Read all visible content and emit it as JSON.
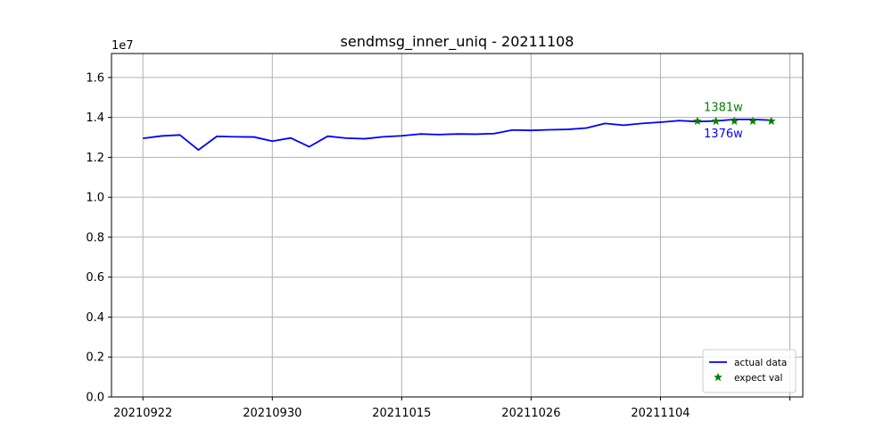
{
  "chart_data": {
    "type": "line",
    "title": "sendmsg_inner_uniq - 20211108",
    "y_offset_text": "1e7",
    "ylim": [
      0,
      1.72
    ],
    "yticks": [
      0.0,
      0.2,
      0.4,
      0.6,
      0.8,
      1.0,
      1.2,
      1.4,
      1.6
    ],
    "ytick_labels": [
      "0.0",
      "0.2",
      "0.4",
      "0.6",
      "0.8",
      "1.0",
      "1.2",
      "1.4",
      "1.6"
    ],
    "xlim": [
      -1.7,
      35.7
    ],
    "xticks": [
      0,
      7,
      14,
      21,
      28,
      35
    ],
    "xtick_labels": [
      "20210922",
      "20210930",
      "20211015",
      "20211026",
      "20211104",
      ""
    ],
    "grid": true,
    "series": [
      {
        "name": "actual data",
        "color": "#0000ff",
        "style": "line",
        "x": [
          0,
          1,
          2,
          3,
          4,
          5,
          6,
          7,
          8,
          9,
          10,
          11,
          12,
          13,
          14,
          15,
          16,
          17,
          18,
          19,
          20,
          21,
          22,
          23,
          24,
          25,
          26,
          27,
          28,
          29,
          30,
          31,
          32,
          33,
          34
        ],
        "values": [
          1.295,
          1.307,
          1.312,
          1.237,
          1.305,
          1.303,
          1.302,
          1.281,
          1.297,
          1.253,
          1.306,
          1.296,
          1.293,
          1.303,
          1.308,
          1.317,
          1.314,
          1.317,
          1.316,
          1.319,
          1.337,
          1.335,
          1.338,
          1.34,
          1.347,
          1.37,
          1.361,
          1.37,
          1.376,
          1.384,
          1.379,
          1.382,
          1.39,
          1.39,
          1.386
        ]
      },
      {
        "name": "expect val",
        "color": "#008000",
        "style": "marker-star",
        "x": [
          30,
          31,
          32,
          33,
          34
        ],
        "values": [
          1.381,
          1.381,
          1.381,
          1.381,
          1.381
        ]
      }
    ],
    "annotations": [
      {
        "text": "1381w",
        "color": "#008000",
        "x": 31.4,
        "y": 1.432
      },
      {
        "text": "1376w",
        "color": "#0000ff",
        "x": 31.4,
        "y": 1.301
      }
    ],
    "legend": {
      "position": "lower-right",
      "entries": [
        {
          "label": "actual data",
          "color": "#0000ff",
          "marker": "line"
        },
        {
          "label": "expect val",
          "color": "#008000",
          "marker": "star"
        }
      ]
    }
  }
}
